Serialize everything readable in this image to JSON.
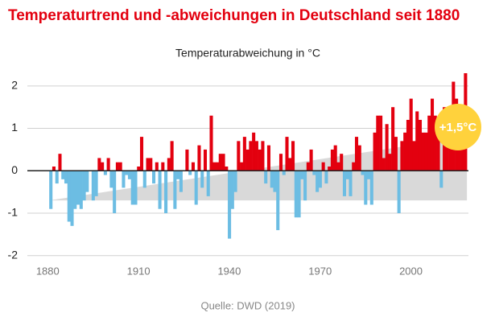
{
  "chart_data": {
    "type": "bar",
    "title": "Temperaturtrend und -abweichungen in Deutschland seit 1880",
    "subtitle": "Temperaturabweichung in °C",
    "source": "Quelle: DWD (2019)",
    "annotation": "+1,5°C",
    "x": [
      1881,
      1882,
      1883,
      1884,
      1885,
      1886,
      1887,
      1888,
      1889,
      1890,
      1891,
      1892,
      1893,
      1894,
      1895,
      1896,
      1897,
      1898,
      1899,
      1900,
      1901,
      1902,
      1903,
      1904,
      1905,
      1906,
      1907,
      1908,
      1909,
      1910,
      1911,
      1912,
      1913,
      1914,
      1915,
      1916,
      1917,
      1918,
      1919,
      1920,
      1921,
      1922,
      1923,
      1924,
      1925,
      1926,
      1927,
      1928,
      1929,
      1930,
      1931,
      1932,
      1933,
      1934,
      1935,
      1936,
      1937,
      1938,
      1939,
      1940,
      1941,
      1942,
      1943,
      1944,
      1945,
      1946,
      1947,
      1948,
      1949,
      1950,
      1951,
      1952,
      1953,
      1954,
      1955,
      1956,
      1957,
      1958,
      1959,
      1960,
      1961,
      1962,
      1963,
      1964,
      1965,
      1966,
      1967,
      1968,
      1969,
      1970,
      1971,
      1972,
      1973,
      1974,
      1975,
      1976,
      1977,
      1978,
      1979,
      1980,
      1981,
      1982,
      1983,
      1984,
      1985,
      1986,
      1987,
      1988,
      1989,
      1990,
      1991,
      1992,
      1993,
      1994,
      1995,
      1996,
      1997,
      1998,
      1999,
      2000,
      2001,
      2002,
      2003,
      2004,
      2005,
      2006,
      2007,
      2008,
      2009,
      2010,
      2011,
      2012,
      2013,
      2014,
      2015,
      2016,
      2017,
      2018
    ],
    "values": [
      -0.9,
      0.1,
      -0.3,
      0.4,
      -0.2,
      -0.3,
      -1.2,
      -1.3,
      -0.9,
      -0.8,
      -0.9,
      -0.7,
      -0.5,
      0.0,
      -0.7,
      -0.6,
      0.3,
      0.2,
      -0.1,
      0.3,
      -0.4,
      -1.0,
      0.2,
      0.2,
      -0.4,
      -0.1,
      -0.2,
      -0.8,
      -0.8,
      0.1,
      0.8,
      -0.4,
      0.3,
      0.3,
      -0.3,
      0.2,
      -0.9,
      0.2,
      -1.0,
      0.3,
      0.7,
      -0.9,
      -0.2,
      -0.5,
      0.0,
      0.5,
      -0.1,
      0.2,
      -0.8,
      0.6,
      -0.4,
      0.5,
      -0.6,
      1.3,
      0.2,
      0.2,
      0.4,
      0.4,
      0.1,
      -1.6,
      -0.9,
      -0.5,
      0.7,
      0.2,
      0.8,
      0.5,
      0.7,
      0.9,
      0.7,
      0.5,
      0.7,
      -0.3,
      0.6,
      -0.4,
      -0.5,
      -1.4,
      0.4,
      -0.1,
      0.8,
      0.3,
      0.7,
      -1.1,
      -1.1,
      -0.2,
      -0.7,
      0.2,
      0.5,
      -0.1,
      -0.5,
      -0.4,
      0.2,
      -0.3,
      0.1,
      0.5,
      0.6,
      0.2,
      0.4,
      -0.6,
      -0.2,
      -0.6,
      0.2,
      0.8,
      0.6,
      -0.1,
      -0.8,
      -0.2,
      -0.8,
      0.9,
      1.3,
      1.3,
      0.3,
      1.1,
      0.4,
      1.5,
      0.8,
      -1.0,
      0.7,
      0.9,
      1.2,
      1.7,
      0.7,
      1.4,
      1.2,
      0.9,
      0.9,
      1.3,
      1.7,
      1.3,
      1.0,
      -0.4,
      1.5,
      0.9,
      0.6,
      2.1,
      1.7,
      1.3,
      1.4,
      2.3
    ],
    "colors": {
      "positive": "#e3000f",
      "negative": "#6cbde3"
    },
    "trend": {
      "x": [
        1881,
        2018
      ],
      "values": [
        -0.7,
        0.8
      ],
      "color": "#d9d9d9"
    },
    "xlim": [
      1877,
      2019
    ],
    "xticks": [
      1880,
      1910,
      1940,
      1970,
      2000
    ],
    "ylim": [
      -2.1,
      2.3
    ],
    "yticks": [
      -2,
      -1,
      0,
      1,
      2
    ],
    "grid": true
  }
}
